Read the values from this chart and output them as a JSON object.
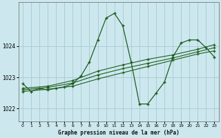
{
  "title": "Graphe pression niveau de la mer (hPa)",
  "background_color": "#cce8ee",
  "line_color": "#1e5c1e",
  "grid_color": "#aacdd6",
  "xlim": [
    -0.5,
    23.5
  ],
  "ylim": [
    1021.6,
    1025.4
  ],
  "yticks": [
    1022,
    1023,
    1024
  ],
  "xticks": [
    0,
    1,
    2,
    3,
    4,
    5,
    6,
    7,
    8,
    9,
    10,
    11,
    12,
    13,
    14,
    15,
    16,
    17,
    18,
    19,
    20,
    21,
    22,
    23
  ],
  "series": [
    {
      "x": [
        0,
        1,
        2,
        3,
        4,
        5,
        6,
        7,
        8,
        9,
        10,
        11,
        12,
        13,
        14,
        15,
        16,
        17,
        18,
        19,
        20,
        21,
        22,
        23
      ],
      "y": [
        1022.8,
        1022.55,
        1022.65,
        1022.6,
        1022.65,
        1022.7,
        1022.8,
        1023.05,
        1023.5,
        1024.2,
        1024.9,
        1025.05,
        1024.65,
        1023.5,
        1022.15,
        1022.15,
        1022.5,
        1022.85,
        1023.65,
        1024.1,
        1024.2,
        1024.2,
        1023.95,
        1023.65
      ]
    },
    {
      "x": [
        0,
        3,
        6,
        9,
        12,
        15,
        18,
        21,
        23
      ],
      "y": [
        1022.55,
        1022.62,
        1022.72,
        1022.95,
        1023.15,
        1023.35,
        1023.55,
        1023.75,
        1023.85
      ]
    },
    {
      "x": [
        0,
        3,
        6,
        9,
        12,
        15,
        18,
        21,
        23
      ],
      "y": [
        1022.6,
        1022.68,
        1022.82,
        1023.08,
        1023.28,
        1023.45,
        1023.62,
        1023.82,
        1023.95
      ]
    },
    {
      "x": [
        0,
        3,
        6,
        9,
        12,
        15,
        18,
        21,
        23
      ],
      "y": [
        1022.65,
        1022.72,
        1022.9,
        1023.2,
        1023.4,
        1023.58,
        1023.72,
        1023.9,
        1024.05
      ]
    }
  ]
}
